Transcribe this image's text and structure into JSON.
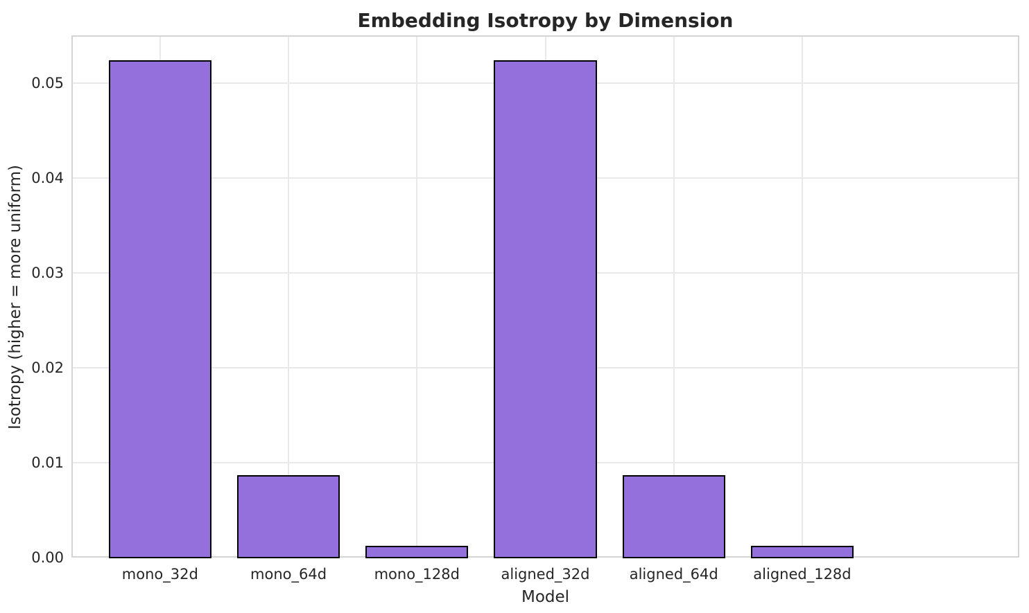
{
  "chart_data": {
    "type": "bar",
    "title": "Embedding Isotropy by Dimension",
    "xlabel": "Model",
    "ylabel": "Isotropy (higher = more uniform)",
    "categories": [
      "mono_32d",
      "mono_64d",
      "mono_128d",
      "aligned_32d",
      "aligned_64d",
      "aligned_128d"
    ],
    "values": [
      0.0523,
      0.0086,
      0.0012,
      0.0523,
      0.0086,
      0.0012
    ],
    "ylim": [
      0,
      0.055
    ],
    "yticks": [
      {
        "value": 0.0,
        "label": "0.00"
      },
      {
        "value": 0.01,
        "label": "0.01"
      },
      {
        "value": 0.02,
        "label": "0.02"
      },
      {
        "value": 0.03,
        "label": "0.03"
      },
      {
        "value": 0.04,
        "label": "0.04"
      },
      {
        "value": 0.05,
        "label": "0.05"
      }
    ],
    "grid": true,
    "legend": false,
    "colors": {
      "bar_fill": "#9370DB",
      "bar_edge": "#000000",
      "grid": "#e9e9e9",
      "spine": "#d4d4d4",
      "text": "#262626"
    }
  }
}
